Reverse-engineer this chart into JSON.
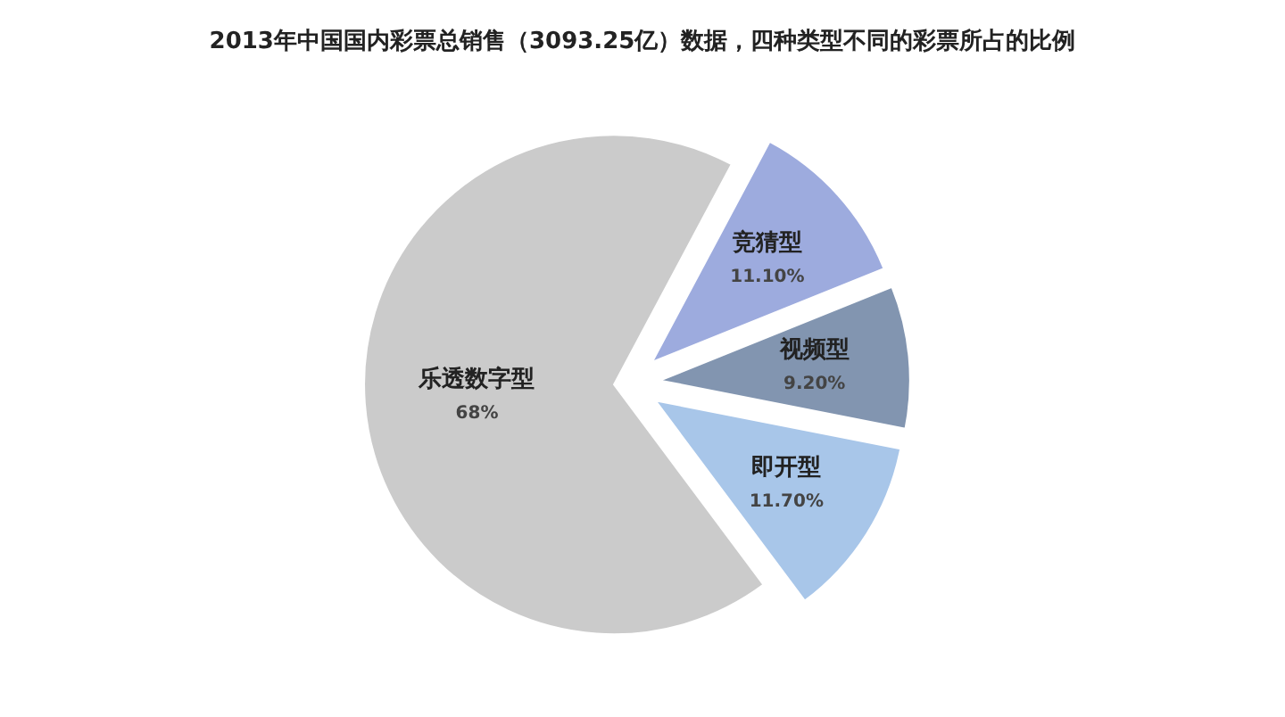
{
  "chart_data": {
    "type": "pie",
    "title": "2013年中国国内彩票总销售（3093.25亿）数据，四种类型不同的彩票所占的比例",
    "categories": [
      "竞猜型",
      "视频型",
      "即开型",
      "乐透数字型"
    ],
    "values": [
      11.1,
      9.2,
      11.7,
      68
    ],
    "value_labels": [
      "11.10%",
      "9.20%",
      "11.70%",
      "68%"
    ],
    "colors": [
      "#9dabde",
      "#8295b0",
      "#a8c6e9",
      "#cbcbcb"
    ],
    "legend": false
  }
}
